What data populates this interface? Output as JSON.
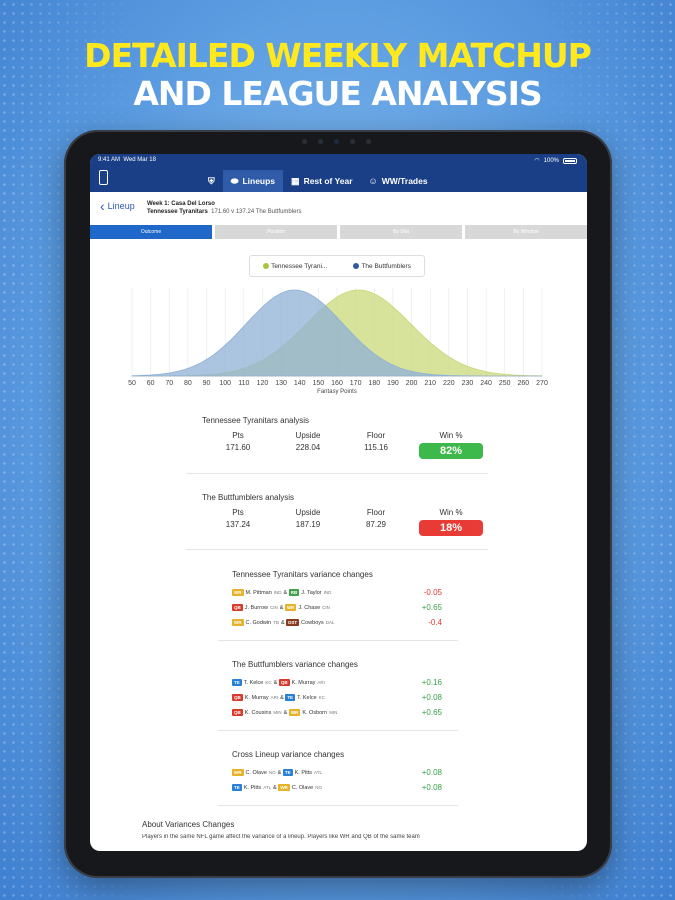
{
  "headline": {
    "line1": "DETAILED WEEKLY MATCHUP",
    "line2": "AND LEAGUE ANALYSIS"
  },
  "status": {
    "time": "9:41 AM",
    "date": "Wed Mar 18",
    "battery": "100%"
  },
  "nav": {
    "tabs": [
      {
        "label": "",
        "icon": "shield-icon"
      },
      {
        "label": "Lineups",
        "icon": "football-icon",
        "active": true
      },
      {
        "label": "Rest of Year",
        "icon": "calendar-icon"
      },
      {
        "label": "WW/Trades",
        "icon": "users-icon"
      }
    ]
  },
  "subheader": {
    "back_label": "Lineup",
    "week": "Week 1: Casa Del Lorso",
    "matchup": "Tennessee Tyranitars",
    "score": "171.60 v 137.24 The Buttfumblers"
  },
  "segments": [
    "Outcome",
    "Position",
    "By Slot",
    "By Window"
  ],
  "legend": [
    {
      "label": "Tennessee Tyrani...",
      "color": "#a8c43a"
    },
    {
      "label": "The Buttfumblers",
      "color": "#2f5aa0"
    }
  ],
  "chart_data": {
    "type": "area",
    "xlabel": "Fantasy Points",
    "xlim": [
      50,
      270
    ],
    "xticks": [
      50,
      60,
      70,
      80,
      90,
      100,
      110,
      120,
      130,
      140,
      150,
      160,
      170,
      180,
      190,
      200,
      210,
      220,
      230,
      240,
      250,
      260,
      270
    ],
    "series": [
      {
        "name": "Tennessee Tyrani...",
        "mean": 171.6,
        "sd": 28,
        "color": "#c9d87a"
      },
      {
        "name": "The Buttfumblers",
        "mean": 137.24,
        "sd": 26,
        "color": "#8fb0d6"
      }
    ]
  },
  "analysis": [
    {
      "title": "Tennessee Tyranitars analysis",
      "labels": [
        "Pts",
        "Upside",
        "Floor",
        "Win %"
      ],
      "pts": "171.60",
      "upside": "228.04",
      "floor": "115.16",
      "win": "82%",
      "win_color": "#3cb94a"
    },
    {
      "title": "The Buttfumblers analysis",
      "labels": [
        "Pts",
        "Upside",
        "Floor",
        "Win %"
      ],
      "pts": "137.24",
      "upside": "187.19",
      "floor": "87.29",
      "win": "18%",
      "win_color": "#e83b36"
    }
  ],
  "variance": [
    {
      "title": "Tennessee Tyranitars variance changes",
      "rows": [
        {
          "p1_pos": "WR",
          "p1": "M. Pittman",
          "p1_team": "IND",
          "p2_pos": "RB",
          "p2": "J. Taylor",
          "p2_team": "IND",
          "value": "-0.05",
          "sign": "neg"
        },
        {
          "p1_pos": "QB",
          "p1": "J. Burrow",
          "p1_team": "CIN",
          "p2_pos": "WR",
          "p2": "J. Chase",
          "p2_team": "CIN",
          "value": "+0.65",
          "sign": "pos"
        },
        {
          "p1_pos": "WR",
          "p1": "C. Godwin",
          "p1_team": "TB",
          "p2_pos": "DST",
          "p2": "Cowboys",
          "p2_team": "DAL",
          "value": "-0.4",
          "sign": "neg"
        }
      ]
    },
    {
      "title": "The Buttfumblers variance changes",
      "rows": [
        {
          "p1_pos": "TE",
          "p1": "T. Kelce",
          "p1_team": "KC",
          "p2_pos": "QB",
          "p2": "K. Murray",
          "p2_team": "ARI",
          "value": "+0.16",
          "sign": "pos"
        },
        {
          "p1_pos": "QB",
          "p1": "K. Murray",
          "p1_team": "ARI",
          "p2_pos": "TE",
          "p2": "T. Kelce",
          "p2_team": "KC",
          "value": "+0.08",
          "sign": "pos"
        },
        {
          "p1_pos": "QB",
          "p1": "K. Cousins",
          "p1_team": "MIN",
          "p2_pos": "WR",
          "p2": "K. Osborn",
          "p2_team": "MIN",
          "value": "+0.65",
          "sign": "pos"
        }
      ]
    },
    {
      "title": "Cross Lineup variance changes",
      "rows": [
        {
          "p1_pos": "WR",
          "p1": "C. Olave",
          "p1_team": "NO",
          "p2_pos": "TE",
          "p2": "K. Pitts",
          "p2_team": "ATL",
          "value": "+0.08",
          "sign": "pos"
        },
        {
          "p1_pos": "TE",
          "p1": "K. Pitts",
          "p1_team": "ATL",
          "p2_pos": "WR",
          "p2": "C. Olave",
          "p2_team": "NO",
          "value": "+0.08",
          "sign": "pos"
        }
      ]
    }
  ],
  "about": {
    "title": "About Variances Changes",
    "text": "Players in the same NFL game affect the variance of a lineup. Players like WR and QB of the same team"
  },
  "colors": {
    "appbar": "#1a3f86",
    "accent": "#1f67c9"
  }
}
